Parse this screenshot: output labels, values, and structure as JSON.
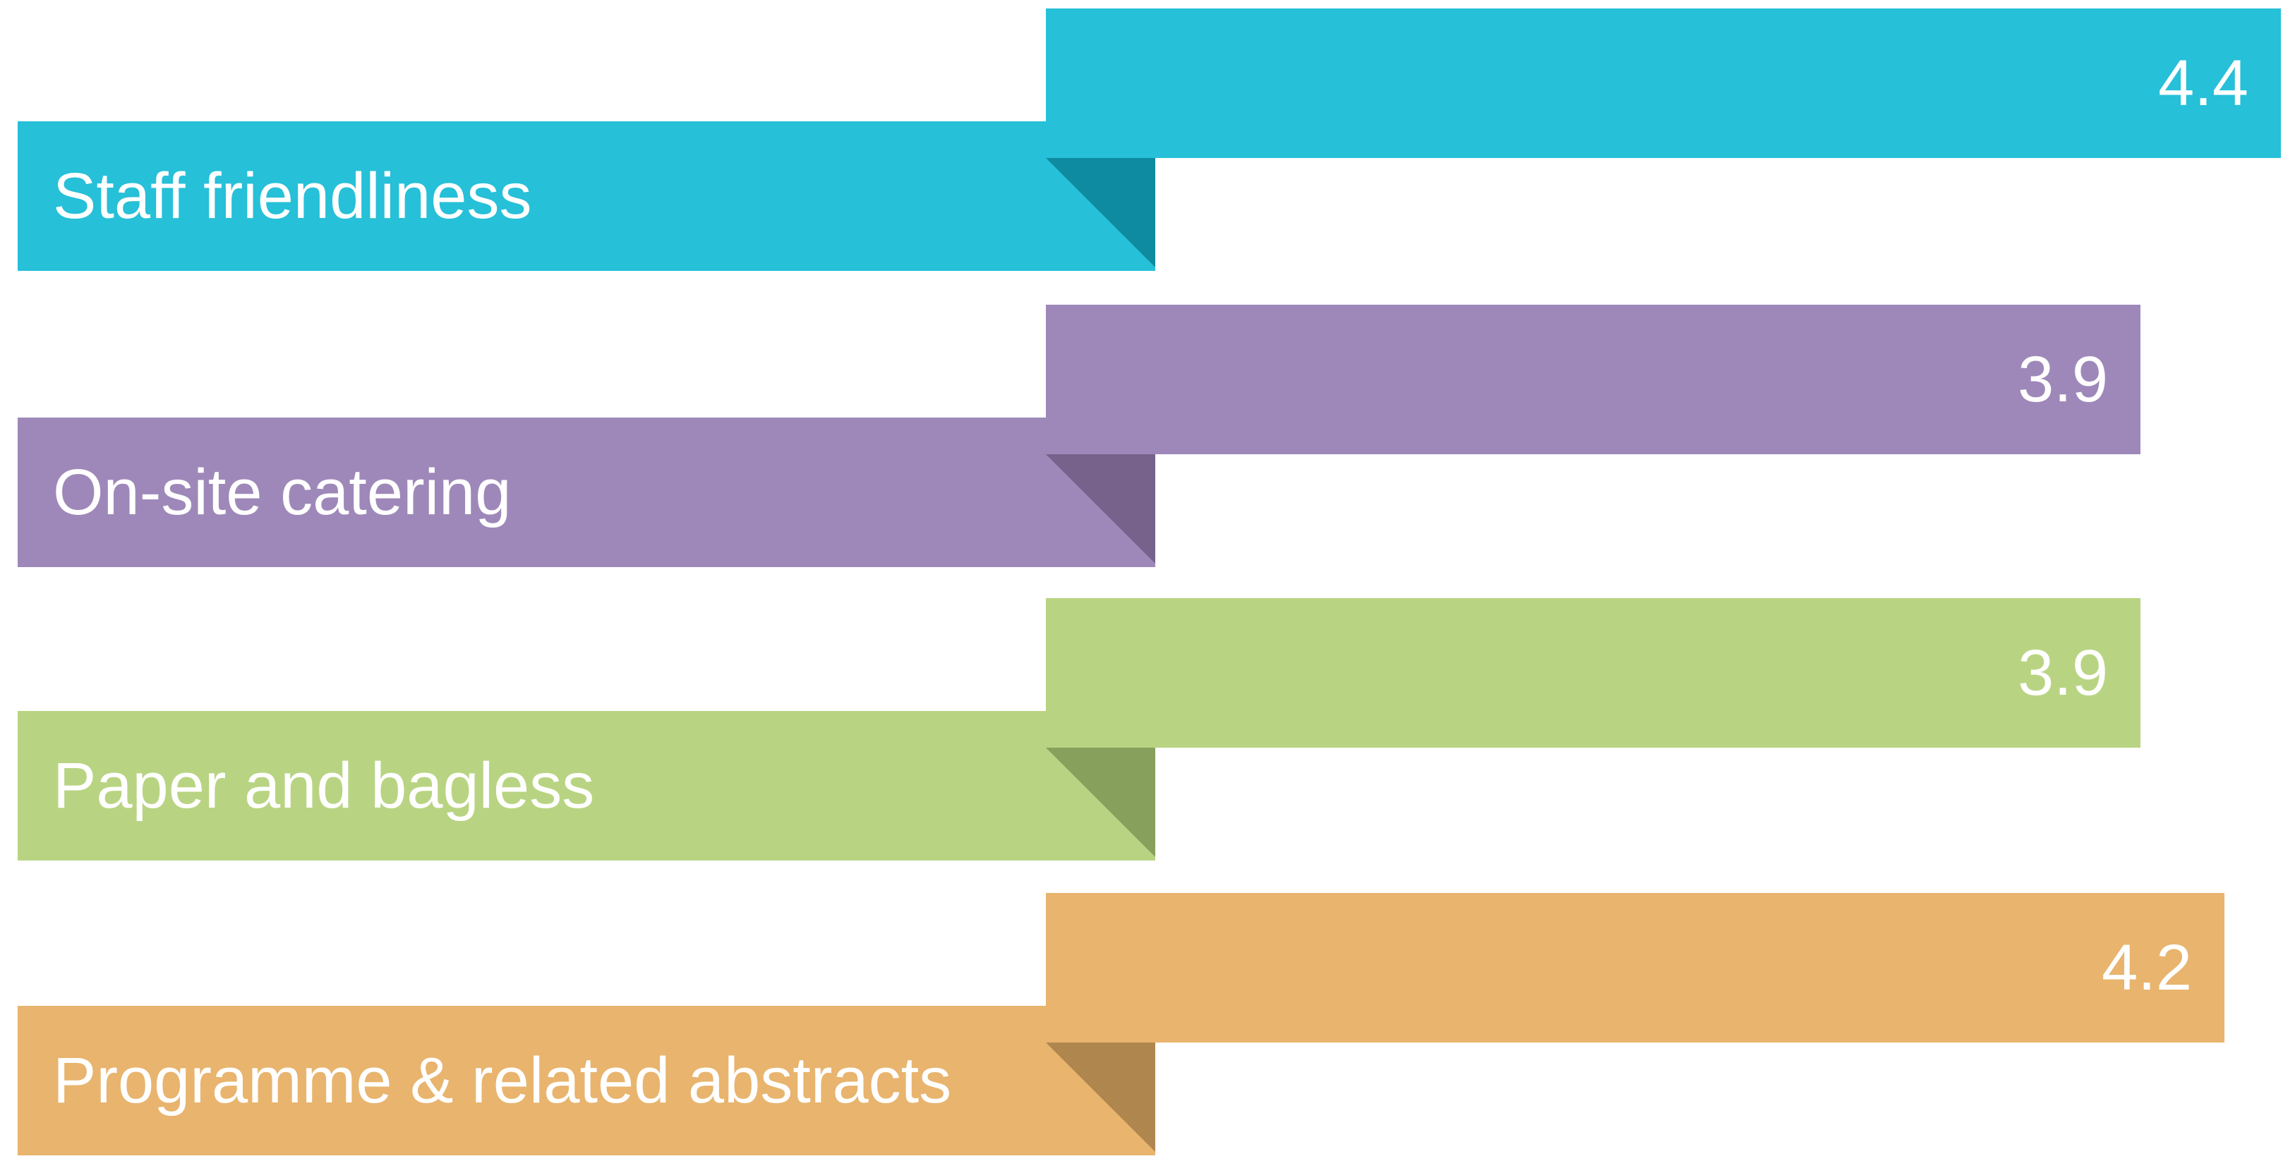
{
  "chart_data": {
    "type": "bar",
    "orientation": "horizontal",
    "categories": [
      "Staff friendliness",
      "On-site catering",
      "Paper and bagless",
      "Programme & related abstracts"
    ],
    "values": [
      4.4,
      3.9,
      3.9,
      4.2
    ],
    "value_labels": [
      "4.4",
      "3.9",
      "3.9",
      "4.2"
    ],
    "colors": [
      "#26c0d8",
      "#9e88b9",
      "#b8d482",
      "#e8b46e"
    ],
    "fold_colors": [
      "#0e8ba1",
      "#76628b",
      "#87a05c",
      "#b0864f"
    ],
    "xlim": [
      0,
      4.4
    ],
    "grid": false,
    "legend": "none"
  }
}
